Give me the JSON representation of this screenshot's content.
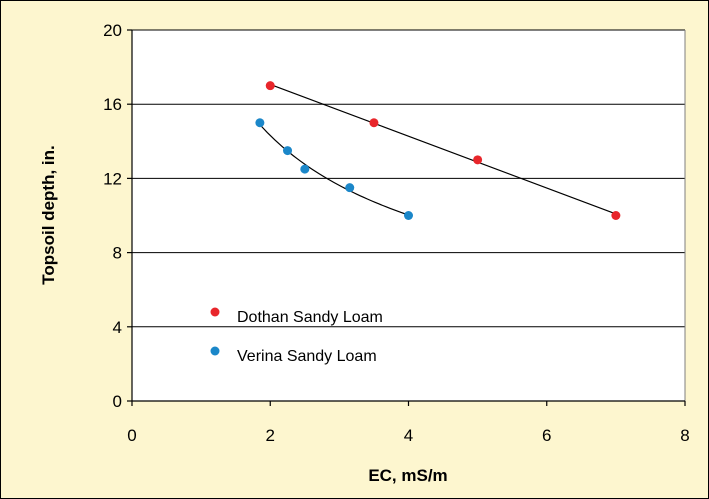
{
  "chart_data": {
    "type": "scatter",
    "xlabel": "EC, mS/m",
    "ylabel": "Topsoil depth, in.",
    "xlim": [
      0,
      8
    ],
    "ylim": [
      0,
      20
    ],
    "x_ticks": [
      0,
      2,
      4,
      6,
      8
    ],
    "y_ticks": [
      0,
      4,
      8,
      12,
      16,
      20
    ],
    "grid": "horizontal",
    "legend_position": "lower-left",
    "background_color": "#fdf6cf",
    "plot_background_color": "#ffffff",
    "series": [
      {
        "name": "Dothan Sandy Loam",
        "color": "#e8262b",
        "trendline": "linear",
        "points": [
          {
            "x": 2.0,
            "y": 17.0
          },
          {
            "x": 3.5,
            "y": 15.0
          },
          {
            "x": 5.0,
            "y": 13.0
          },
          {
            "x": 7.0,
            "y": 10.0
          }
        ]
      },
      {
        "name": "Verina Sandy Loam",
        "color": "#1b87c9",
        "trendline": "power",
        "points": [
          {
            "x": 1.85,
            "y": 15.0
          },
          {
            "x": 2.25,
            "y": 13.5
          },
          {
            "x": 2.5,
            "y": 12.5
          },
          {
            "x": 3.15,
            "y": 11.5
          },
          {
            "x": 4.0,
            "y": 10.0
          }
        ]
      }
    ]
  }
}
